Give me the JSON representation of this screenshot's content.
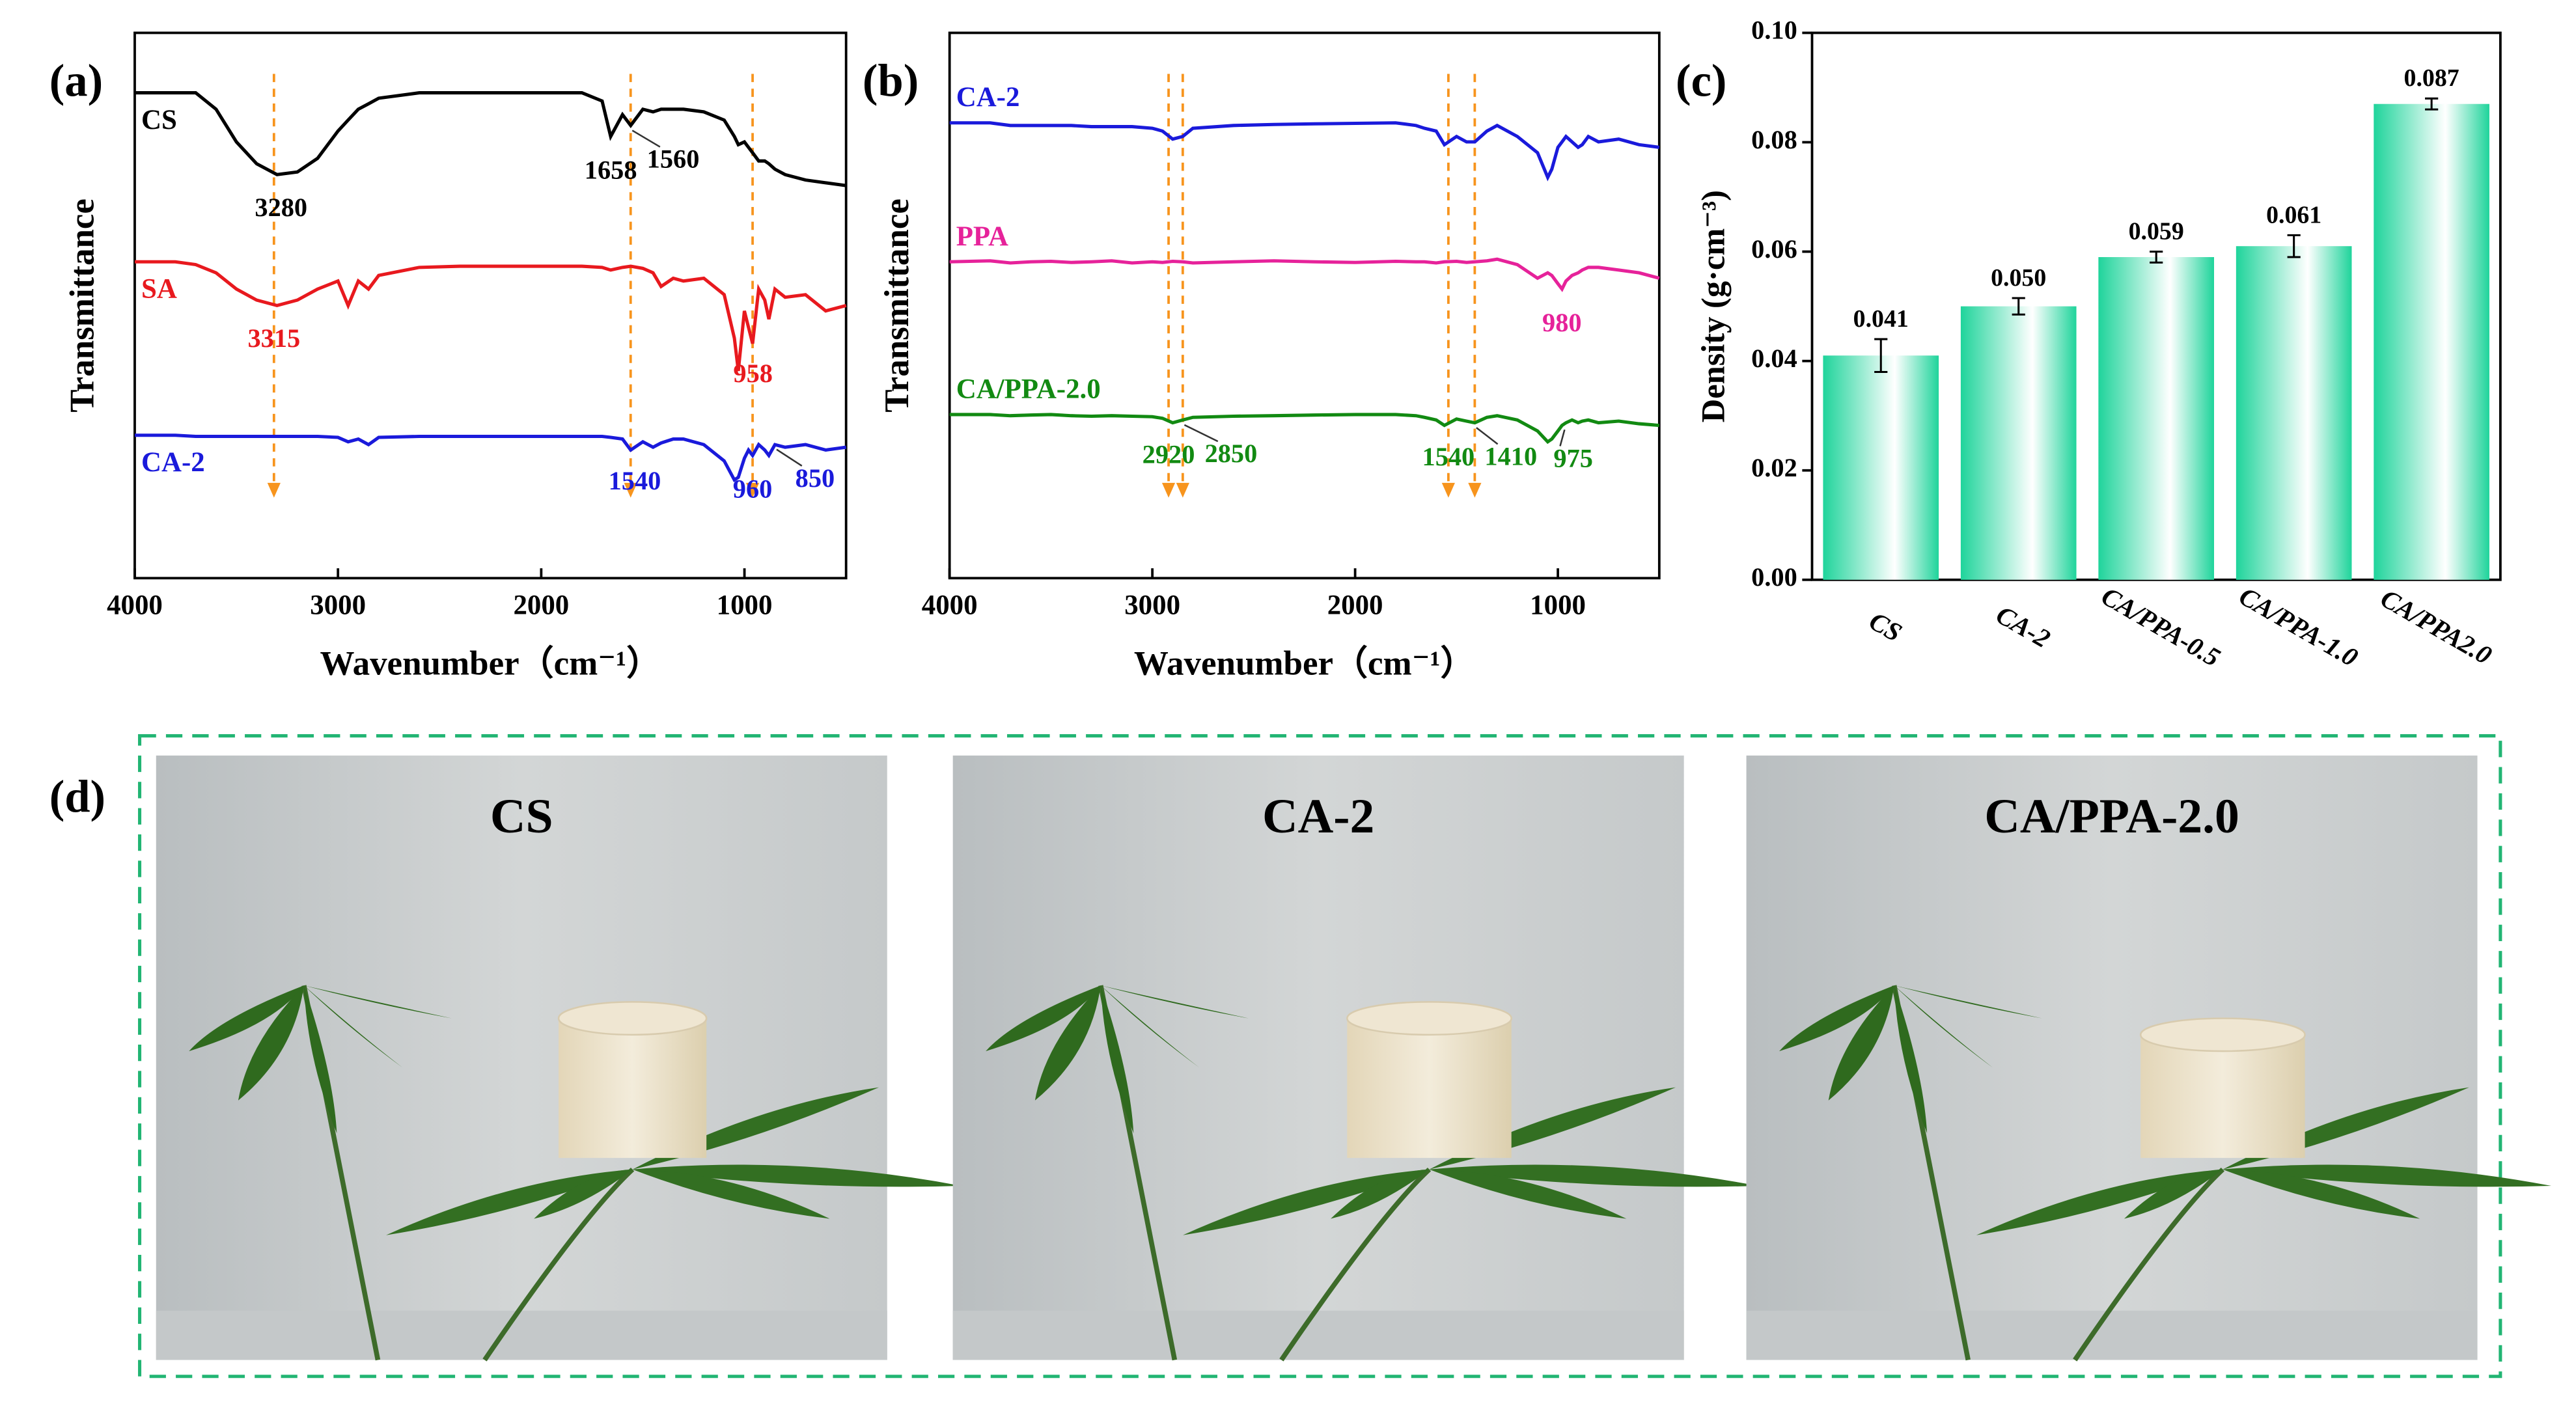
{
  "panel_labels": [
    "(a)",
    "(b)",
    "(c)",
    "(d)"
  ],
  "chart_data": [
    {
      "type": "line",
      "xlabel": "Wavenumber（cm⁻¹）",
      "ylabel": "Transmittance",
      "x": [
        4000,
        3800,
        3700,
        3600,
        3500,
        3400,
        3300,
        3200,
        3100,
        3000,
        2950,
        2900,
        2850,
        2800,
        2600,
        2400,
        2200,
        2000,
        1800,
        1700,
        1658,
        1600,
        1560,
        1500,
        1450,
        1410,
        1350,
        1300,
        1200,
        1100,
        1050,
        1030,
        1000,
        980,
        960,
        930,
        900,
        880,
        850,
        800,
        700,
        600,
        500
      ],
      "xlim": [
        4000,
        500
      ],
      "xticks": [
        4000,
        3000,
        2000,
        1000
      ],
      "ylim": [
        0,
        10
      ],
      "markers": [
        3315,
        1560,
        960
      ],
      "marker_color": "#f7941d",
      "series": [
        {
          "name": "CS",
          "color": "#000000",
          "peaks": [
            3280,
            1658,
            1560
          ],
          "values": [
            8.9,
            8.9,
            8.9,
            8.6,
            8.0,
            7.6,
            7.4,
            7.45,
            7.7,
            8.2,
            8.4,
            8.6,
            8.7,
            8.8,
            8.9,
            8.9,
            8.9,
            8.9,
            8.9,
            8.75,
            8.1,
            8.5,
            8.3,
            8.6,
            8.55,
            8.6,
            8.6,
            8.6,
            8.55,
            8.4,
            8.1,
            7.95,
            8.0,
            7.9,
            7.8,
            7.65,
            7.65,
            7.6,
            7.5,
            7.4,
            7.3,
            7.25,
            7.2
          ]
        },
        {
          "name": "SA",
          "color": "#e8191e",
          "peaks": [
            3315,
            958
          ],
          "values": [
            5.8,
            5.8,
            5.75,
            5.6,
            5.3,
            5.1,
            5.0,
            5.1,
            5.3,
            5.45,
            5.0,
            5.45,
            5.3,
            5.55,
            5.7,
            5.72,
            5.72,
            5.72,
            5.72,
            5.7,
            5.65,
            5.7,
            5.72,
            5.68,
            5.6,
            5.35,
            5.5,
            5.45,
            5.5,
            5.2,
            4.4,
            3.8,
            4.9,
            4.6,
            4.3,
            5.3,
            5.1,
            4.75,
            5.3,
            5.15,
            5.2,
            4.9,
            5.0
          ]
        },
        {
          "name": "CA-2",
          "color": "#1a1adb",
          "peaks": [
            1540,
            960,
            850
          ],
          "values": [
            2.62,
            2.62,
            2.6,
            2.6,
            2.6,
            2.6,
            2.6,
            2.6,
            2.6,
            2.58,
            2.5,
            2.55,
            2.45,
            2.58,
            2.6,
            2.6,
            2.6,
            2.6,
            2.6,
            2.6,
            2.58,
            2.55,
            2.35,
            2.5,
            2.4,
            2.48,
            2.55,
            2.55,
            2.45,
            2.15,
            1.8,
            1.85,
            2.2,
            2.35,
            2.25,
            2.45,
            2.35,
            2.25,
            2.45,
            2.4,
            2.45,
            2.35,
            2.4
          ]
        }
      ]
    },
    {
      "type": "line",
      "xlabel": "Wavenumber（cm⁻¹）",
      "ylabel": "Transmittance",
      "x": [
        4000,
        3800,
        3700,
        3600,
        3500,
        3400,
        3300,
        3200,
        3100,
        3000,
        2950,
        2900,
        2850,
        2800,
        2600,
        2400,
        2200,
        2000,
        1800,
        1700,
        1658,
        1600,
        1560,
        1500,
        1450,
        1410,
        1350,
        1300,
        1200,
        1100,
        1050,
        1030,
        1000,
        980,
        960,
        930,
        900,
        880,
        850,
        800,
        700,
        600,
        500
      ],
      "xlim": [
        4000,
        500
      ],
      "xticks": [
        4000,
        3000,
        2000,
        1000
      ],
      "ylim": [
        0,
        10
      ],
      "markers": [
        2920,
        2850,
        1540,
        1410
      ],
      "marker_color": "#f7941d",
      "series": [
        {
          "name": "CA-2",
          "color": "#1a1adb",
          "peaks": [],
          "values": [
            8.35,
            8.35,
            8.3,
            8.3,
            8.3,
            8.3,
            8.28,
            8.28,
            8.28,
            8.25,
            8.2,
            8.05,
            8.1,
            8.25,
            8.3,
            8.32,
            8.33,
            8.34,
            8.35,
            8.3,
            8.25,
            8.2,
            7.95,
            8.1,
            8.0,
            8.0,
            8.2,
            8.3,
            8.1,
            7.8,
            7.35,
            7.5,
            7.9,
            8.0,
            8.1,
            8.0,
            7.9,
            7.95,
            8.1,
            8.0,
            8.05,
            7.95,
            7.9
          ]
        },
        {
          "name": "PPA",
          "color": "#e6229a",
          "peaks": [
            980
          ],
          "values": [
            5.8,
            5.82,
            5.78,
            5.8,
            5.81,
            5.79,
            5.8,
            5.82,
            5.78,
            5.8,
            5.79,
            5.81,
            5.8,
            5.78,
            5.8,
            5.82,
            5.8,
            5.79,
            5.81,
            5.8,
            5.8,
            5.78,
            5.8,
            5.81,
            5.79,
            5.8,
            5.82,
            5.85,
            5.75,
            5.5,
            5.6,
            5.55,
            5.4,
            5.3,
            5.45,
            5.55,
            5.6,
            5.65,
            5.7,
            5.7,
            5.65,
            5.6,
            5.5
          ]
        },
        {
          "name": "CA/PPA-2.0",
          "color": "#128a12",
          "peaks": [
            2920,
            2850,
            1540,
            1410,
            975
          ],
          "values": [
            3.0,
            3.0,
            2.98,
            2.99,
            3.0,
            2.98,
            2.97,
            2.98,
            2.97,
            2.96,
            2.93,
            2.85,
            2.9,
            2.95,
            2.97,
            2.98,
            2.99,
            3.0,
            3.0,
            2.98,
            2.95,
            2.9,
            2.8,
            2.92,
            2.88,
            2.85,
            2.95,
            2.98,
            2.9,
            2.7,
            2.5,
            2.55,
            2.7,
            2.8,
            2.85,
            2.9,
            2.85,
            2.88,
            2.9,
            2.85,
            2.88,
            2.83,
            2.8
          ]
        }
      ]
    },
    {
      "type": "bar",
      "ylabel": "Density (g·cm⁻³)",
      "categories": [
        "CS",
        "CA-2",
        "CA/PPA-0.5",
        "CA/PPA-1.0",
        "CA/PPA2.0"
      ],
      "values": [
        0.041,
        0.05,
        0.059,
        0.061,
        0.087
      ],
      "value_labels": [
        "0.041",
        "0.050",
        "0.059",
        "0.061",
        "0.087"
      ],
      "errors": [
        0.003,
        0.0015,
        0.001,
        0.002,
        0.001
      ],
      "color": "#1fd49b",
      "ylim": [
        0,
        0.1
      ],
      "yticks": [
        {
          "value": 0,
          "label": "0.00"
        },
        {
          "value": 0.02,
          "label": "0.02"
        },
        {
          "value": 0.04,
          "label": "0.04"
        },
        {
          "value": 0.06,
          "label": "0.06"
        },
        {
          "value": 0.08,
          "label": "0.08"
        },
        {
          "value": 0.1,
          "label": "0.10"
        }
      ]
    }
  ],
  "photos": {
    "captions": [
      "CS",
      "CA-2",
      "CA/PPA-2.0"
    ]
  }
}
